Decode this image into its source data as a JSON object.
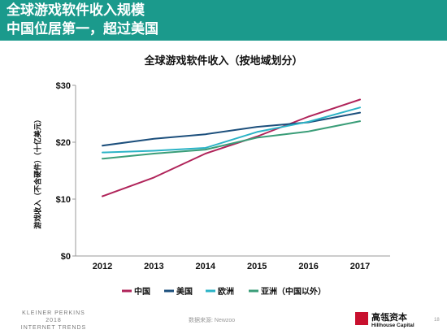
{
  "slide": {
    "title_line1": "全球游戏软件收入规模",
    "title_line2": "中国位居第一，超过美国"
  },
  "chart_data": {
    "type": "line",
    "title": "全球游戏软件收入（按地域划分）",
    "ylabel": "游戏收入（不含硬件）（十亿美元）",
    "xlabel": "",
    "categories": [
      "2012",
      "2013",
      "2014",
      "2015",
      "2016",
      "2017"
    ],
    "y_ticks": [
      0,
      10,
      20,
      30
    ],
    "y_tick_labels": [
      "$0",
      "$10",
      "$20",
      "$30"
    ],
    "ylim": [
      0,
      30
    ],
    "grid": false,
    "legend_position": "bottom",
    "series": [
      {
        "name": "中国",
        "color": "#b0245a",
        "values": [
          10.5,
          13.8,
          18.0,
          21.0,
          24.5,
          27.5
        ]
      },
      {
        "name": "美国",
        "color": "#1c4f7c",
        "values": [
          19.4,
          20.6,
          21.4,
          22.7,
          23.5,
          25.2
        ]
      },
      {
        "name": "欧洲",
        "color": "#2bb3c6",
        "values": [
          18.2,
          18.5,
          19.0,
          21.8,
          23.6,
          26.1
        ]
      },
      {
        "name": "亚洲（中国以外）",
        "color": "#3a9d78",
        "values": [
          17.1,
          18.0,
          18.7,
          20.8,
          21.9,
          23.7
        ]
      }
    ]
  },
  "footer": {
    "brand_line1": "KLEINER PERKINS",
    "brand_line2": "2018",
    "brand_line3": "INTERNET TRENDS",
    "source": "数据来源: Newzoo",
    "logo_cn": "高瓴资本",
    "logo_en": "Hillhouse Capital",
    "page_number": "18"
  }
}
